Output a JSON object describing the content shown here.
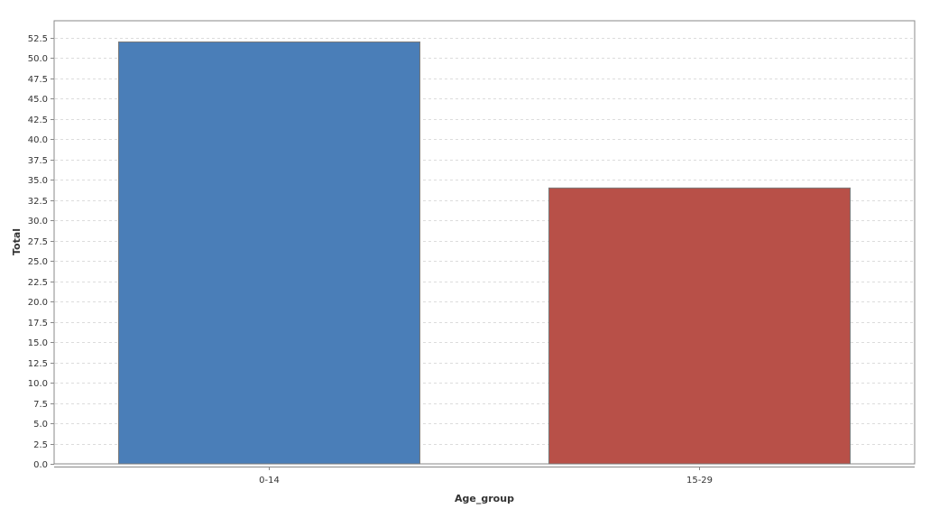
{
  "chart_data": {
    "type": "bar",
    "categories": [
      "0-14",
      "15-29"
    ],
    "values": [
      52,
      34
    ],
    "colors": [
      "#4a7eb8",
      "#b85048"
    ],
    "xlabel": "Age_group",
    "ylabel": "Total",
    "ylim": [
      0,
      52.5
    ],
    "ytick_step": 2.5,
    "yticks": [
      "0.0",
      "2.5",
      "5.0",
      "7.5",
      "10.0",
      "12.5",
      "15.0",
      "17.5",
      "20.0",
      "22.5",
      "25.0",
      "27.5",
      "30.0",
      "32.5",
      "35.0",
      "37.5",
      "40.0",
      "42.5",
      "45.0",
      "47.5",
      "50.0",
      "52.5"
    ],
    "grid": true,
    "legend": "none"
  }
}
